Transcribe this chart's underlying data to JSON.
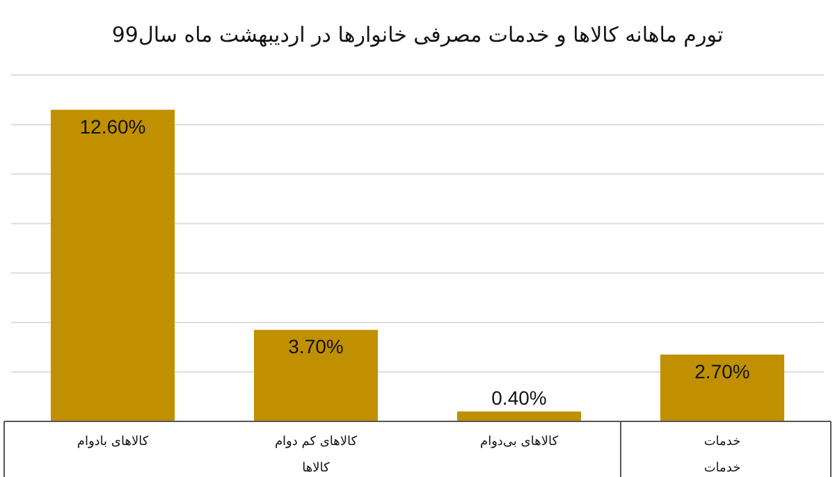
{
  "chart_data": {
    "type": "bar",
    "title": "تورم ماهانه کالاها و خدمات مصرفی خانوارها در اردیبهشت ماه سال99",
    "categories": [
      "کالاهای بادوام",
      "کالاهای کم دوام",
      "کالاهای بی‌دوام",
      "خدمات"
    ],
    "values": [
      12.6,
      3.7,
      0.4,
      2.7
    ],
    "value_labels": [
      "12.60%",
      "3.70%",
      "0.40%",
      "2.70%"
    ],
    "color": "#c09000",
    "yticks": [
      {
        "value": 0,
        "label": null
      },
      {
        "value": 2,
        "label": null
      },
      {
        "value": 4,
        "label": null
      },
      {
        "value": 6,
        "label": null
      },
      {
        "value": 8,
        "label": null
      },
      {
        "value": 10,
        "label": null
      },
      {
        "value": 12,
        "label": null
      },
      {
        "value": 14,
        "label": null
      }
    ],
    "grid": "y",
    "tick_labels": "x",
    "annotations": [
      "کالاها",
      "خدمات"
    ]
  }
}
